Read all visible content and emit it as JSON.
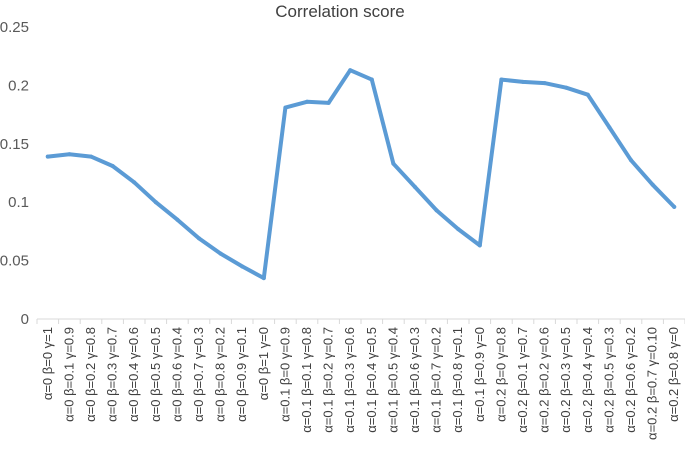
{
  "chart_data": {
    "type": "line",
    "title": "Correlation score",
    "xlabel": "",
    "ylabel": "",
    "ylim": [
      0,
      0.25
    ],
    "yticks": [
      "0",
      "0.05",
      "0.1",
      "0.15",
      "0.2",
      "0.25"
    ],
    "ytick_values": [
      0,
      0.05,
      0.1,
      0.15,
      0.2,
      0.25
    ],
    "grid": false,
    "legend": "none",
    "line_color": "#5B9BD5",
    "categories": [
      "α=0 β=0 γ=1",
      "α=0 β=0.1 γ=0.9",
      "α=0 β=0.2 γ=0.8",
      "α=0 β=0.3 γ=0.7",
      "α=0 β=0.4 γ=0.6",
      "α=0 β=0.5 γ=0.5",
      "α=0 β=0.6 γ=0.4",
      "α=0 β=0.7 γ=0.3",
      "α=0 β=0.8 γ=0.2",
      "α=0 β=0.9 γ=0.1",
      "α=0 β=1 γ=0",
      "α=0.1 β=0 γ=0.9",
      "α=0.1 β=0.1 γ=0.8",
      "α=0.1 β=0.2 γ=0.7",
      "α=0.1 β=0.3 γ=0.6",
      "α=0.1 β=0.4 γ=0.5",
      "α=0.1 β=0.5 γ=0.4",
      "α=0.1 β=0.6 γ=0.3",
      "α=0.1 β=0.7 γ=0.2",
      "α=0.1 β=0.8 γ=0.1",
      "α=0.1 β=0.9 γ=0",
      "α=0.2 β=0 γ=0.8",
      "α=0.2 β=0.1 γ=0.7",
      "α=0.2 β=0.2 γ=0.6",
      "α=0.2 β=0.3 γ=0.5",
      "α=0.2 β=0.4 γ=0.4",
      "α=0.2 β=0.5 γ=0.3",
      "α=0.2 β=0.6 γ=0.2",
      "α=0.2 β=0.7 γ=0.10",
      "α=0.2 β=0.8 γ=0"
    ],
    "values": [
      0.139,
      0.141,
      0.139,
      0.131,
      0.117,
      0.1,
      0.085,
      0.069,
      0.056,
      0.045,
      0.035,
      0.181,
      0.186,
      0.185,
      0.213,
      0.205,
      0.133,
      0.113,
      0.093,
      0.077,
      0.063,
      0.205,
      0.203,
      0.202,
      0.198,
      0.192,
      0.164,
      0.136,
      0.115,
      0.096
    ]
  }
}
